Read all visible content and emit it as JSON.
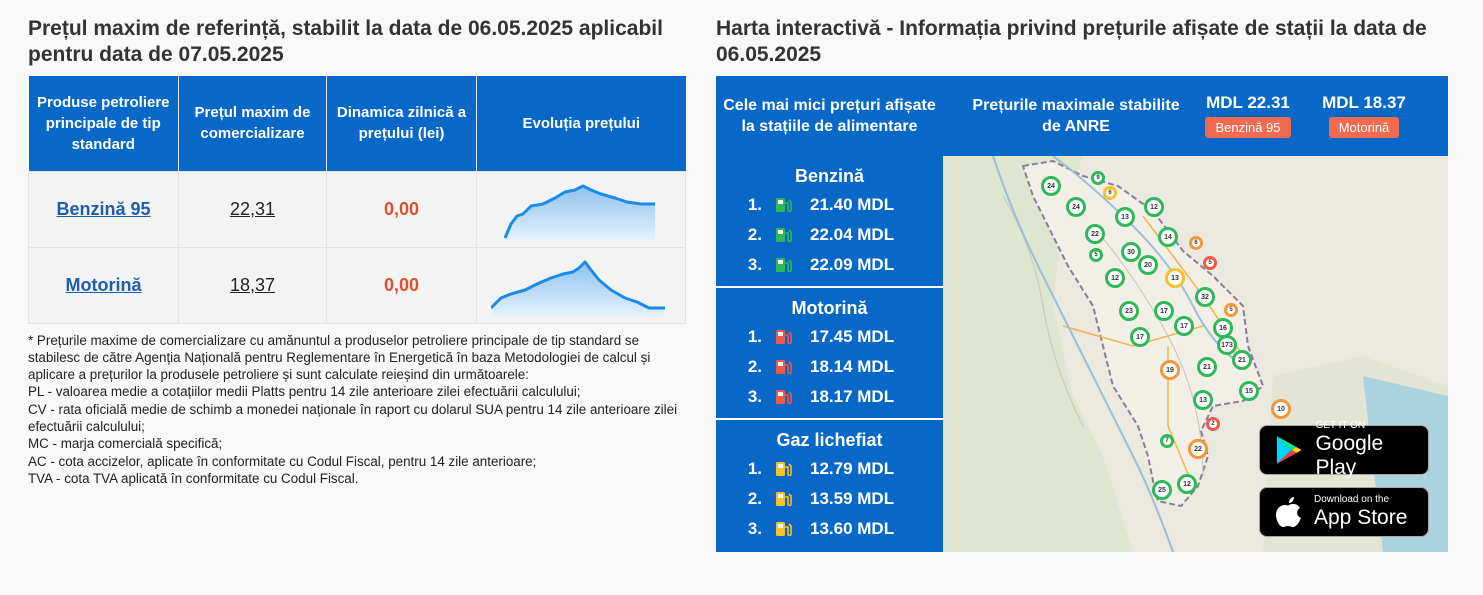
{
  "left": {
    "title": "Prețul maxim de referință, stabilit la data de 06.05.2025 aplicabil pentru data de 07.05.2025",
    "headers": [
      "Produse petroliere principale de tip standard",
      "Prețul maxim de comercializare",
      "Dinamica zilnică a prețului (lei)",
      "Evoluția prețului"
    ],
    "rows": [
      {
        "product": "Benzină 95",
        "price": "22,31",
        "dynamic": "0,00"
      },
      {
        "product": "Motorină",
        "price": "18,37",
        "dynamic": "0,00"
      }
    ],
    "notes": [
      "* Prețurile maxime de comercializare cu amănuntul a produselor petroliere principale de tip standard se stabilesc de către Agenția Națională pentru Reglementare în Energetică în baza Metodologiei de calcul și aplicare a prețurilor la produsele petroliere și sunt calculate reieșind din următoarele:",
      "PL - valoarea medie a cotațiilor medii Platts pentru 14 zile anterioare zilei efectuării calculului;",
      "CV - rata oficială medie de schimb a monedei naționale în raport cu dolarul SUA pentru 14 zile anterioare zilei efectuării calculului;",
      "MC - marja comercială specifică;",
      "AC - cota accizelor, aplicate în conformitate cu Codul Fiscal, pentru 14 zile anterioare;",
      "TVA - cota TVA aplicată în conformitate cu Codul Fiscal."
    ]
  },
  "right": {
    "title": "Harta interactivă - Informația privind prețurile afișate de stații la data de 06.05.2025",
    "cheapest_label": "Cele mai mici prețuri afișate la stațiile de alimentare",
    "max_label": "Prețurile maximale stabilite de ANRE",
    "max_prices": [
      {
        "value": "MDL 22.31",
        "tag": "Benzină 95"
      },
      {
        "value": "MDL 18.37",
        "tag": "Motorină"
      }
    ],
    "fuels": [
      {
        "name": "Benzină",
        "color": "#2fb85a",
        "items": [
          {
            "rank": "1.",
            "price": "21.40 MDL"
          },
          {
            "rank": "2.",
            "price": "22.04 MDL"
          },
          {
            "rank": "3.",
            "price": "22.09 MDL"
          }
        ]
      },
      {
        "name": "Motorină",
        "color": "#ec5a4a",
        "items": [
          {
            "rank": "1.",
            "price": "17.45 MDL"
          },
          {
            "rank": "2.",
            "price": "18.14 MDL"
          },
          {
            "rank": "3.",
            "price": "18.17 MDL"
          }
        ]
      },
      {
        "name": "Gaz lichefiat",
        "color": "#f6c12c",
        "items": [
          {
            "rank": "1.",
            "price": "12.79 MDL"
          },
          {
            "rank": "2.",
            "price": "13.59 MDL"
          },
          {
            "rank": "3.",
            "price": "13.60 MDL"
          }
        ]
      }
    ],
    "map_markers": [
      "24",
      "9",
      "6",
      "24",
      "13",
      "12",
      "22",
      "14",
      "30",
      "6",
      "5",
      "20",
      "5",
      "12",
      "13",
      "32",
      "23",
      "17",
      "5",
      "17",
      "16",
      "17",
      "173",
      "21",
      "19",
      "21",
      "15",
      "13",
      "10",
      "2",
      "7",
      "22",
      "25",
      "12"
    ],
    "stores": {
      "google": {
        "small": "GET IT ON",
        "big": "Google Play"
      },
      "apple": {
        "small": "Download on the",
        "big": "App Store"
      }
    }
  }
}
